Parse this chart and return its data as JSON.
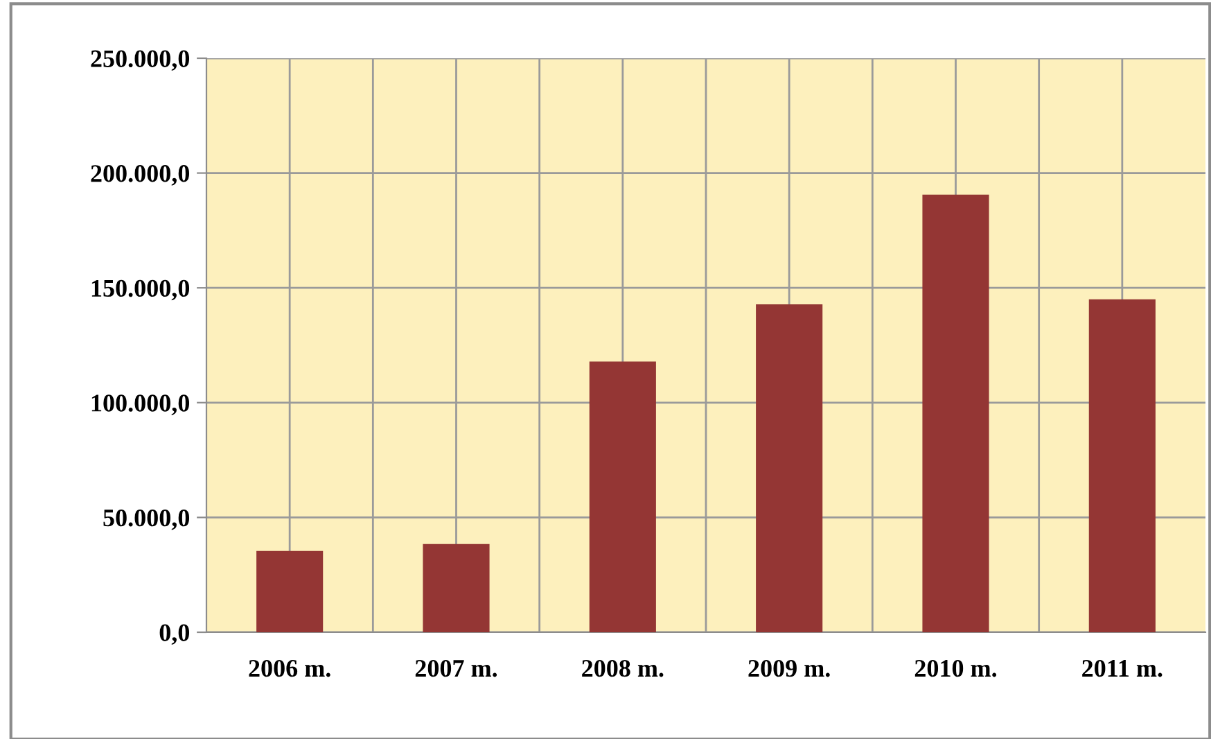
{
  "chart_data": {
    "type": "bar",
    "categories": [
      "2006 m.",
      "2007 m.",
      "2008 m.",
      "2009 m.",
      "2010 m.",
      "2011 m."
    ],
    "values": [
      35400,
      38400,
      117900,
      142800,
      190600,
      145000
    ],
    "color": "#943634",
    "ylim": [
      0,
      250000
    ],
    "yticks": [
      {
        "value": 0,
        "label": "0,0"
      },
      {
        "value": 50000,
        "label": "50.000,0"
      },
      {
        "value": 100000,
        "label": "100.000,0"
      },
      {
        "value": 150000,
        "label": "150.000,0"
      },
      {
        "value": 200000,
        "label": "200.000,0"
      },
      {
        "value": 250000,
        "label": "250.000,0"
      }
    ],
    "grid": true
  }
}
